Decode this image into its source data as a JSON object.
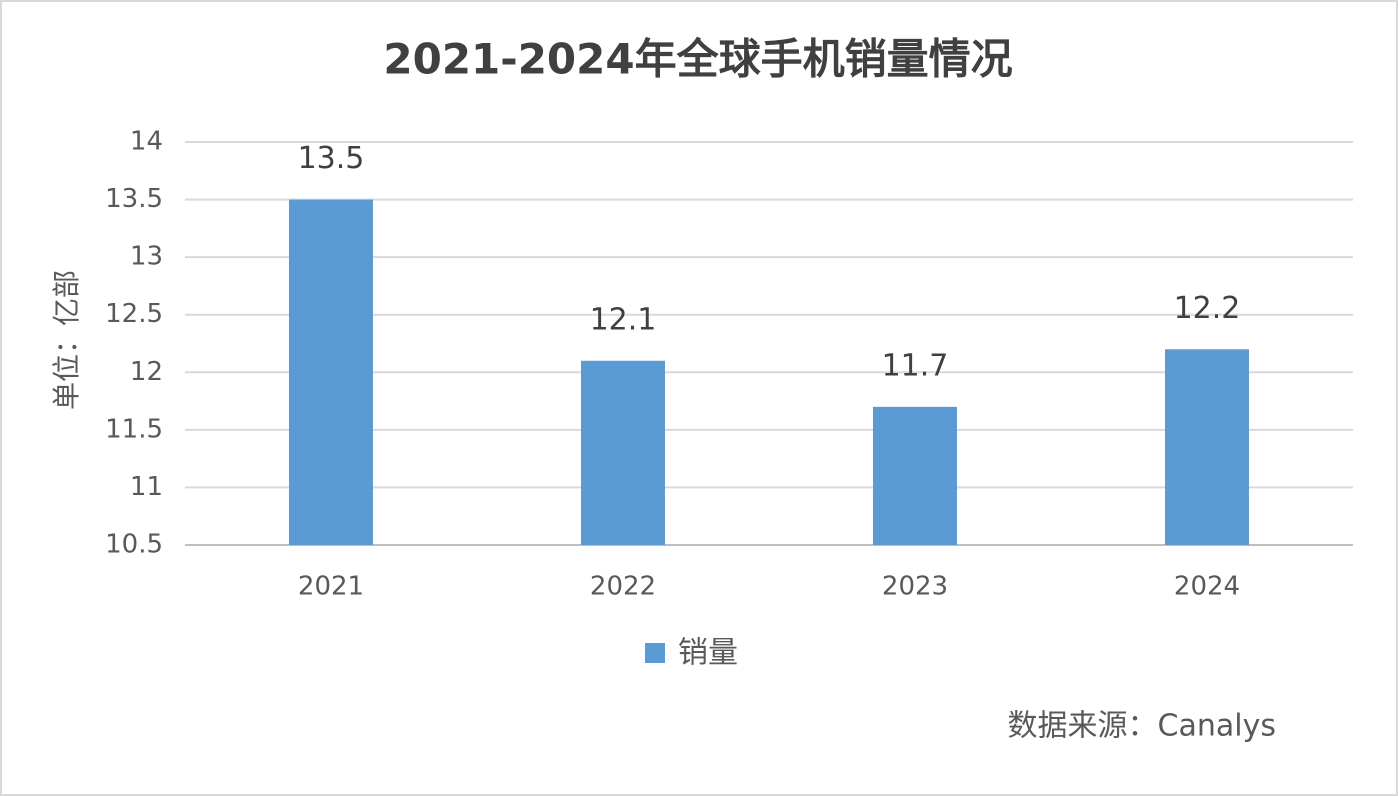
{
  "chart_data": {
    "type": "bar",
    "title": "2021-2024年全球手机销量情况",
    "y_axis_label": "单位：亿部",
    "source": "数据来源：Canalys",
    "categories": [
      "2021",
      "2022",
      "2023",
      "2024"
    ],
    "series": [
      {
        "name": "销量",
        "color": "#5b9bd5",
        "values": [
          13.5,
          12.1,
          11.7,
          12.2
        ]
      }
    ],
    "ylim": [
      10.5,
      14
    ],
    "yticks": [
      10.5,
      11,
      11.5,
      12,
      12.5,
      13,
      13.5,
      14
    ],
    "grid": true,
    "data_labels": true,
    "legend": "bottom"
  }
}
